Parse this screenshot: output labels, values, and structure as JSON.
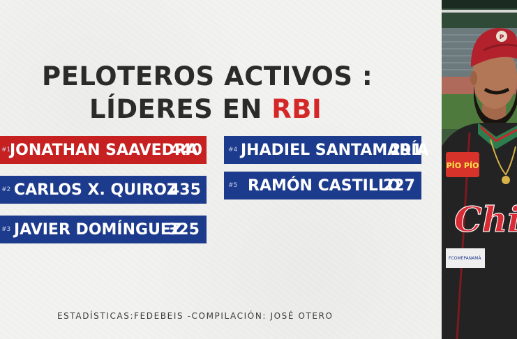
{
  "title": {
    "line1": "PELOTEROS ACTIVOS :",
    "line2_prefix": "LÍDERES EN ",
    "line2_accent": "RBI"
  },
  "leaders": [
    {
      "rank": "#1",
      "name": "JONATHAN SAAVEDRA",
      "value": "440"
    },
    {
      "rank": "#2",
      "name": "CARLOS X. QUIROZ",
      "value": "435"
    },
    {
      "rank": "#3",
      "name": "JAVIER DOMÍNGUEZ",
      "value": "325"
    },
    {
      "rank": "#4",
      "name": "JHADIEL SANTAMARÍA",
      "value": "291"
    },
    {
      "rank": "#5",
      "name": "RAMÓN CASTILLO",
      "value": "227"
    }
  ],
  "footer": "ESTADÍSTICAS:FEDEBEIS -COMPILACIÓN: JOSÉ OTERO",
  "photo": {
    "cap_logo": "P",
    "sponsor": "PÍO PÍO",
    "jersey_text": "Chir",
    "patch": "FCOMEPANAMÁ"
  },
  "colors": {
    "blue": "#1d3b8c",
    "red": "#c62020",
    "accent": "#d42828",
    "text": "#2b2b2b"
  }
}
